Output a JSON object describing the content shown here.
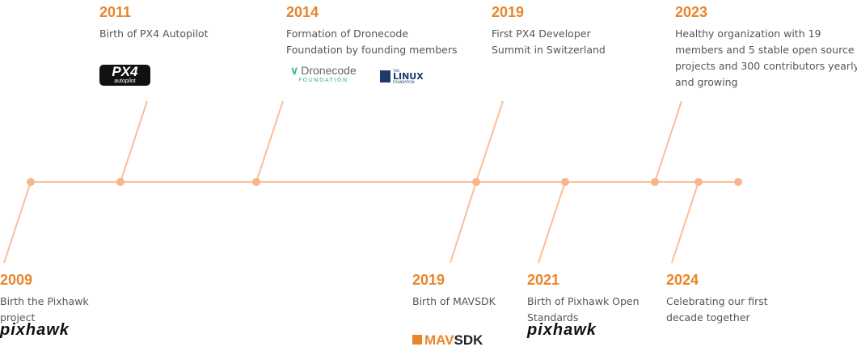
{
  "events": [
    {
      "year": "2009",
      "lines": [
        "Birth the Pixhawk",
        "project"
      ],
      "logo": {
        "text": "pixhawk"
      }
    },
    {
      "year": "2011",
      "lines": [
        "Birth of PX4 Autopilot"
      ],
      "logo": {
        "text": "PX4",
        "sub": "autopilot"
      }
    },
    {
      "year": "2014",
      "lines": [
        "Formation of Dronecode",
        "Foundation by founding members"
      ],
      "logo": {
        "text": "Dronecode",
        "sub": "FOUNDATION"
      },
      "logo2": {
        "pre": "THE",
        "text": "LINUX",
        "sub": "FOUNDATION"
      }
    },
    {
      "year": "2019",
      "lines": [
        "Birth of MAVSDK"
      ],
      "logo": {
        "text": "MAV",
        "sub": "SDK"
      }
    },
    {
      "year": "2019",
      "lines": [
        "First PX4 Developer",
        "Summit in Switzerland"
      ]
    },
    {
      "year": "2021",
      "lines": [
        "Birth of Pixhawk Open",
        "Standards"
      ],
      "logo": {
        "text": "pixhawk"
      }
    },
    {
      "year": "2023",
      "lines": [
        "Healthy organization with 19",
        "members and 5 stable open source",
        "projects and 300 contributors yearly",
        "and growing"
      ]
    },
    {
      "year": "2024",
      "lines": [
        "Celebrating our first",
        "decade together"
      ]
    }
  ]
}
